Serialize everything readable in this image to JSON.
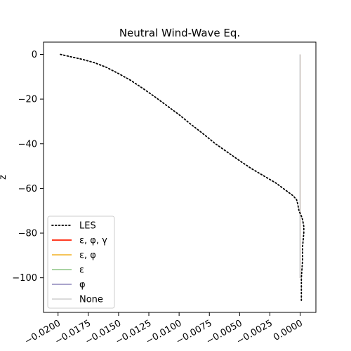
{
  "chart_data": {
    "type": "line",
    "title": "Neutral Wind-Wave Eq.",
    "xlabel": "",
    "ylabel": "z",
    "xlim": [
      -0.0212,
      0.0013
    ],
    "ylim": [
      -115.5,
      5.5
    ],
    "x_ticks": [
      -0.02,
      -0.0175,
      -0.015,
      -0.0125,
      -0.01,
      -0.0075,
      -0.005,
      -0.0025,
      0.0
    ],
    "x_tick_labels": [
      "−0.0200",
      "−0.0175",
      "−0.0150",
      "−0.0125",
      "−0.0100",
      "−0.0075",
      "−0.0050",
      "−0.0025",
      "0.0000"
    ],
    "y_ticks": [
      0,
      -20,
      -40,
      -60,
      -80,
      -100
    ],
    "y_tick_labels": [
      "0",
      "−20",
      "−40",
      "−60",
      "−80",
      "−100"
    ],
    "legend_position": "lower-left",
    "series": [
      {
        "name": "LES",
        "color": "#000000",
        "style": "dotted",
        "points": [
          [
            -0.0198,
            0
          ],
          [
            -0.019,
            -1
          ],
          [
            -0.018,
            -2.2
          ],
          [
            -0.017,
            -3.7
          ],
          [
            -0.016,
            -5.8
          ],
          [
            -0.015,
            -8.6
          ],
          [
            -0.014,
            -11.6
          ],
          [
            -0.013,
            -15.2
          ],
          [
            -0.012,
            -19.0
          ],
          [
            -0.011,
            -23.0
          ],
          [
            -0.01,
            -27.0
          ],
          [
            -0.009,
            -31.4
          ],
          [
            -0.008,
            -35.6
          ],
          [
            -0.007,
            -40.0
          ],
          [
            -0.006,
            -43.8
          ],
          [
            -0.005,
            -47.6
          ],
          [
            -0.004,
            -51.2
          ],
          [
            -0.003,
            -54.4
          ],
          [
            -0.002,
            -57.6
          ],
          [
            -0.0012,
            -60.8
          ],
          [
            -0.0006,
            -63.2
          ],
          [
            -0.0003,
            -65.0
          ],
          [
            -0.0002,
            -67.0
          ],
          [
            -0.0001,
            -70.0
          ],
          [
            0.0001,
            -72.4
          ],
          [
            0.0002,
            -74.0
          ],
          [
            0.0003,
            -77.0
          ],
          [
            0.0003,
            -80.0
          ],
          [
            0.0002,
            -86.0
          ],
          [
            0.0002,
            -92.0
          ],
          [
            0.0001,
            -100.0
          ],
          [
            0.0001,
            -106.0
          ],
          [
            0.0001,
            -111.0
          ]
        ]
      },
      {
        "name": "ε, φ, γ",
        "color": "#ff3b22",
        "style": "solid",
        "points": [
          [
            0.0,
            0
          ],
          [
            0.0,
            -100
          ]
        ]
      },
      {
        "name": "ε, φ",
        "color": "#f5c45a",
        "style": "solid",
        "points": [
          [
            0.0,
            0
          ],
          [
            0.0,
            -100
          ]
        ]
      },
      {
        "name": "ε",
        "color": "#a9d3a3",
        "style": "solid",
        "points": [
          [
            0.0,
            0
          ],
          [
            0.0,
            -100
          ]
        ]
      },
      {
        "name": "φ",
        "color": "#aaa4cc",
        "style": "solid",
        "points": [
          [
            0.0,
            0
          ],
          [
            0.0,
            -100
          ]
        ]
      },
      {
        "name": "None",
        "color": "#dadada",
        "style": "solid",
        "points": [
          [
            0.0,
            0
          ],
          [
            0.0,
            -100
          ]
        ]
      }
    ]
  }
}
